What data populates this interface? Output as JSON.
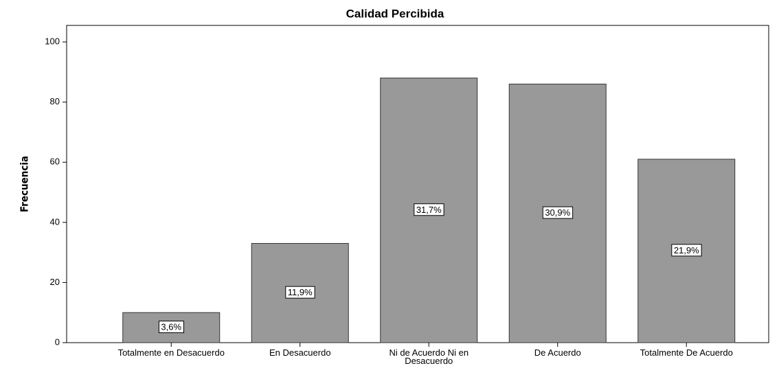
{
  "chart_data": {
    "type": "bar",
    "title": "Calidad Percibida",
    "y_label": "Frecuencia",
    "categories": [
      "Totalmente en Desacuerdo",
      "En Desacuerdo",
      "Ni de Acuerdo Ni en Desacuerdo",
      "De Acuerdo",
      "Totalmente De Acuerdo"
    ],
    "values": [
      10,
      33,
      88,
      86,
      61
    ],
    "percent_values": [
      3.6,
      11.9,
      31.7,
      30.9,
      21.9
    ],
    "percent_labels": [
      "3,6%",
      "11,9%",
      "31,7%",
      "30,9%",
      "21,9%"
    ],
    "color": "#999999",
    "ylim": [
      0,
      105.5
    ],
    "yticks": [
      0,
      20,
      40,
      60,
      80,
      100
    ],
    "grid": false
  }
}
